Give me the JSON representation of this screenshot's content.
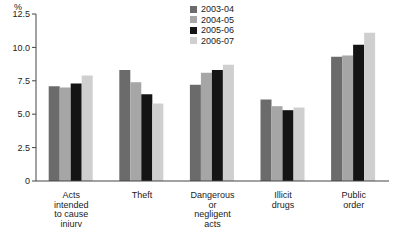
{
  "chart_data": {
    "type": "bar",
    "y_label": "%",
    "categories": [
      "Acts intended to cause injury",
      "Theft",
      "Dangerous or negligent acts",
      "Illicit drugs",
      "Public order"
    ],
    "series": [
      {
        "name": "2003-04",
        "color": "#6b6b6b",
        "values": [
          7.1,
          8.3,
          7.2,
          6.1,
          9.3
        ]
      },
      {
        "name": "2004-05",
        "color": "#a6a6a6",
        "values": [
          7.0,
          7.4,
          8.1,
          5.6,
          9.4
        ]
      },
      {
        "name": "2005-06",
        "color": "#141414",
        "values": [
          7.3,
          6.5,
          8.3,
          5.3,
          10.2
        ]
      },
      {
        "name": "2006-07",
        "color": "#cfcfcf",
        "values": [
          7.9,
          5.8,
          8.7,
          5.5,
          11.1
        ]
      }
    ],
    "ylim": [
      0,
      12.5
    ],
    "yticks": [
      0,
      2.5,
      {
        "value": 5,
        "label": "5.0"
      },
      7.5,
      {
        "value": 10,
        "label": "10.0"
      },
      12.5
    ],
    "grid": false,
    "legend": "top"
  }
}
